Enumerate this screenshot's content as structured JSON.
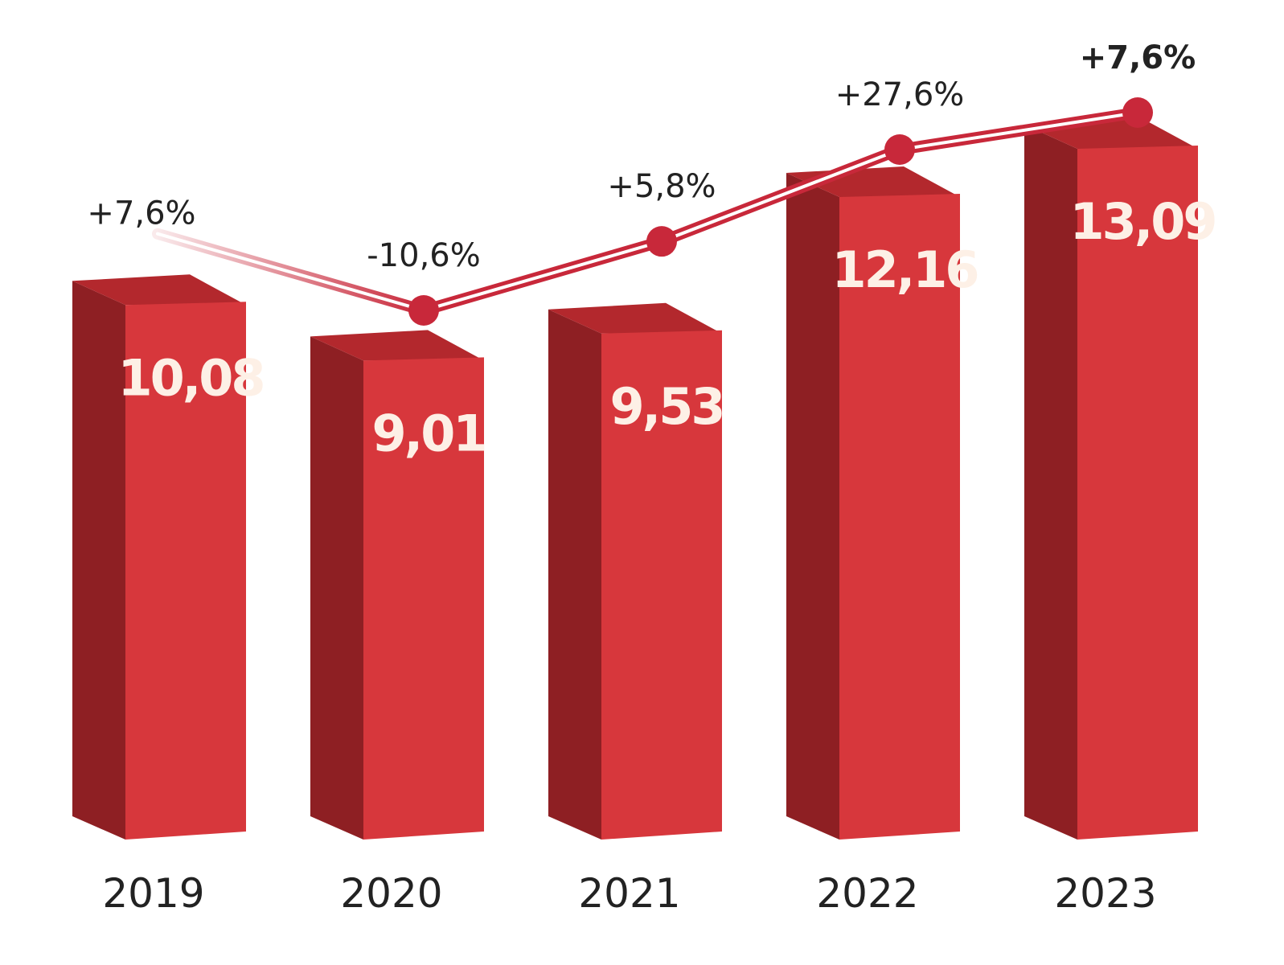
{
  "chart_data": {
    "type": "bar",
    "categories": [
      "2019",
      "2020",
      "2021",
      "2022",
      "2023"
    ],
    "values": [
      10.08,
      9.01,
      9.53,
      12.16,
      13.09
    ],
    "value_labels": [
      "10,08",
      "9,01",
      "9,53",
      "12,16",
      "13,09"
    ],
    "growth": [
      7.6,
      -10.6,
      5.8,
      27.6,
      7.6
    ],
    "growth_labels": [
      "+7,6%",
      "-10,6%",
      "+5,8%",
      "+27,6%",
      "+7,6%"
    ],
    "title": "",
    "xlabel": "",
    "ylabel": "",
    "grid": false,
    "legend": "none",
    "colors": {
      "bar_front": "#d7373c",
      "bar_side": "#8e1f23",
      "bar_top": "#b3282d",
      "line": "#c8283a",
      "value_text": "#fdf0e6",
      "label_text": "#222222"
    }
  }
}
